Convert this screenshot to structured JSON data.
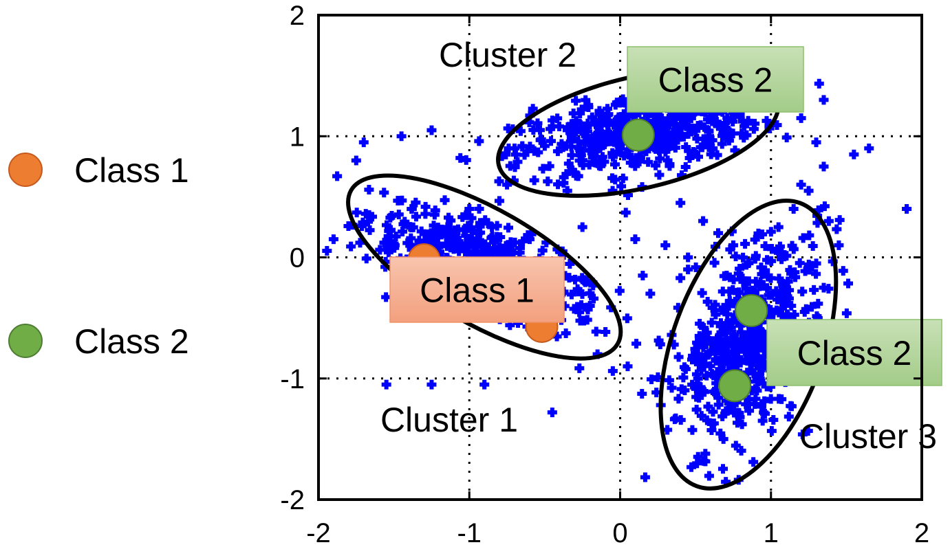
{
  "chart_data": {
    "type": "scatter",
    "xlim": [
      -2,
      2
    ],
    "ylim": [
      -2,
      2
    ],
    "xticks": [
      "-2",
      "-1",
      "0",
      "1",
      "2"
    ],
    "yticks": [
      "-2",
      "-1",
      "0",
      "1",
      "2"
    ],
    "grid": "dotted at ±1 and 0",
    "point_color": "#0000ff",
    "legend": {
      "placement": "left",
      "entries": [
        {
          "label": "Class 1",
          "color": "#ed7d31"
        },
        {
          "label": "Class 2",
          "color": "#70ad47"
        }
      ]
    },
    "clusters": [
      {
        "label": "Cluster 1",
        "center": [
          -0.9,
          -0.08
        ],
        "rx": 1.02,
        "ry": 0.38,
        "angle": -30
      },
      {
        "label": "Cluster 2",
        "center": [
          0.12,
          1.03
        ],
        "rx": 0.95,
        "ry": 0.37,
        "angle": 13
      },
      {
        "label": "Cluster 3",
        "center": [
          0.85,
          -0.72
        ],
        "rx": 1.0,
        "ry": 0.5,
        "angle": 70
      }
    ],
    "class_points": [
      {
        "class": "Class 1",
        "x": -1.3,
        "y": -0.02
      },
      {
        "class": "Class 1",
        "x": -0.52,
        "y": -0.57
      },
      {
        "class": "Class 2",
        "x": 0.12,
        "y": 1.01
      },
      {
        "class": "Class 2",
        "x": 0.87,
        "y": -0.44
      },
      {
        "class": "Class 2",
        "x": 0.76,
        "y": -1.06
      }
    ],
    "class_labels": [
      {
        "text": "Class 1",
        "class": "Class 1"
      },
      {
        "text": "Class 2",
        "class": "Class 2"
      },
      {
        "text": "Class 2",
        "class": "Class 2"
      }
    ],
    "outliers": [
      [
        -1.9,
        0.15
      ],
      [
        -1.55,
        -1.05
      ],
      [
        -1.25,
        -1.05
      ],
      [
        -0.45,
        -1.28
      ],
      [
        -0.15,
        -0.8
      ],
      [
        0.05,
        -0.9
      ],
      [
        0.2,
        -0.3
      ],
      [
        0.3,
        0.1
      ],
      [
        0.45,
        0.0
      ],
      [
        0.55,
        0.3
      ],
      [
        0.4,
        0.45
      ],
      [
        0.65,
        0.2
      ],
      [
        0.75,
        0.1
      ],
      [
        1.05,
        0.25
      ],
      [
        1.15,
        0.4
      ],
      [
        1.45,
        0.1
      ],
      [
        1.3,
        -0.05
      ],
      [
        1.35,
        0.75
      ],
      [
        1.55,
        0.85
      ],
      [
        1.65,
        0.9
      ],
      [
        1.9,
        0.4
      ],
      [
        1.3,
        0.95
      ],
      [
        1.2,
        1.15
      ],
      [
        1.35,
        1.3
      ],
      [
        -0.75,
        0.6
      ],
      [
        -0.35,
        0.55
      ],
      [
        -0.7,
        0.9
      ],
      [
        -0.5,
        0.92
      ],
      [
        -1.45,
        1.0
      ],
      [
        -1.25,
        1.05
      ],
      [
        -1.7,
        0.95
      ],
      [
        -1.75,
        0.8
      ],
      [
        -0.6,
        0.15
      ],
      [
        -0.4,
        0.05
      ],
      [
        -0.25,
        0.25
      ],
      [
        0.1,
        0.15
      ],
      [
        0.15,
        -0.15
      ],
      [
        1.35,
        -0.25
      ],
      [
        1.45,
        -0.6
      ],
      [
        1.2,
        -0.75
      ],
      [
        0.9,
        -0.2
      ],
      [
        -0.9,
        -1.05
      ],
      [
        -0.2,
        -0.4
      ],
      [
        1.2,
        0.6
      ],
      [
        -0.05,
        0.55
      ],
      [
        1.25,
        0.55
      ],
      [
        -1.0,
        0.4
      ],
      [
        -0.85,
        0.25
      ],
      [
        0.45,
        -0.1
      ]
    ]
  }
}
